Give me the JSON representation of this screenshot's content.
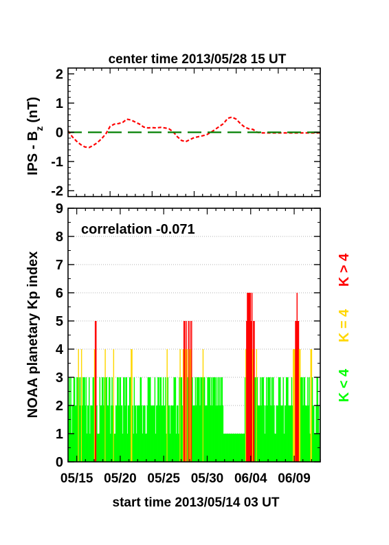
{
  "chart_data": [
    {
      "type": "line",
      "title": "center time 2013/05/28 15 UT",
      "ylabel": "IPS - B",
      "ylabel_subscript": "z",
      "ylabel_unit": "(nT)",
      "ylim": [
        -2.2,
        2.2
      ],
      "y_ticks": [
        "2",
        "1",
        "0",
        "-1",
        "-2"
      ],
      "y_tick_values": [
        2,
        1,
        0,
        -1,
        -2
      ],
      "xlim": [
        0,
        30
      ],
      "series": [
        {
          "color": "#ff0000",
          "style": "dashed",
          "x": [
            0,
            0.5,
            1,
            1.5,
            2,
            2.5,
            3,
            3.5,
            4,
            4.5,
            5,
            5.5,
            6,
            6.5,
            7,
            7.5,
            8,
            8.5,
            9,
            9.5,
            10,
            10.5,
            11,
            11.5,
            12,
            12.5,
            13,
            13.5,
            14,
            14.5,
            15,
            15.5,
            16,
            16.5,
            17,
            17.5,
            18,
            18.5,
            19,
            19.5,
            20,
            20.5,
            21,
            21.5,
            22,
            22.5,
            23,
            23.5,
            24,
            24.5,
            25,
            25.5,
            26,
            26.5,
            27,
            27.5,
            28,
            28.5,
            29,
            29.5,
            30
          ],
          "y": [
            0.05,
            -0.15,
            -0.3,
            -0.42,
            -0.5,
            -0.52,
            -0.45,
            -0.35,
            -0.22,
            -0.05,
            0.2,
            0.28,
            0.3,
            0.34,
            0.45,
            0.42,
            0.35,
            0.28,
            0.18,
            0.15,
            0.16,
            0.15,
            0.17,
            0.15,
            0.12,
            0.02,
            -0.15,
            -0.28,
            -0.32,
            -0.25,
            -0.18,
            -0.15,
            -0.12,
            -0.08,
            0.0,
            0.1,
            0.2,
            0.3,
            0.48,
            0.52,
            0.45,
            0.3,
            0.18,
            0.12,
            0.1,
            0.0,
            -0.02,
            -0.02,
            -0.02,
            -0.02,
            -0.02,
            -0.02,
            -0.02,
            -0.02,
            -0.02,
            -0.02,
            -0.02,
            -0.02,
            -0.02,
            -0.02,
            -0.02
          ]
        },
        {
          "color": "#008000",
          "style": "long-dash",
          "x": [
            0,
            30
          ],
          "y": [
            0,
            0
          ]
        }
      ]
    },
    {
      "type": "bar",
      "title": "start time 2013/05/14 03 UT",
      "ylabel": "NOAA planetary Kp index",
      "annotation": "correlation -0.071",
      "ylim": [
        0,
        9
      ],
      "y_ticks": [
        "9",
        "8",
        "7",
        "6",
        "5",
        "4",
        "3",
        "2",
        "1",
        "0"
      ],
      "y_tick_values": [
        9,
        8,
        7,
        6,
        5,
        4,
        3,
        2,
        1,
        0
      ],
      "grid": true,
      "x_tick_labels": [
        "05/15",
        "05/20",
        "05/25",
        "05/30",
        "06/04",
        "06/09"
      ],
      "x_tick_days": [
        1,
        6,
        11,
        16,
        21,
        26
      ],
      "xlim_days": [
        0,
        29
      ],
      "legend": [
        {
          "label": "K > 4",
          "color": "#ff0000"
        },
        {
          "label": "K = 4",
          "color": "#ffd700"
        },
        {
          "label": "K < 4",
          "color": "#00ff00"
        }
      ],
      "values": [
        2,
        3,
        2,
        3,
        1,
        2,
        2,
        3,
        3,
        2,
        2,
        3,
        3,
        4,
        3,
        2,
        3,
        4,
        2,
        3,
        3,
        3,
        2,
        3,
        1,
        2,
        2,
        3,
        1,
        2,
        2,
        2,
        3,
        3,
        4,
        5,
        5,
        2,
        1,
        1,
        1,
        3,
        2,
        2,
        3,
        3,
        2,
        3,
        4,
        3,
        3,
        2,
        2,
        3,
        3,
        1,
        2,
        3,
        2,
        4,
        1,
        1,
        2,
        2,
        3,
        3,
        2,
        3,
        3,
        2,
        2,
        1,
        3,
        3,
        2,
        3,
        3,
        1,
        2,
        2,
        3,
        3,
        4,
        4,
        2,
        1,
        3,
        2,
        2,
        1,
        2,
        2,
        2,
        2,
        3,
        3,
        2,
        1,
        2,
        2,
        2,
        1,
        1,
        2,
        3,
        3,
        3,
        3,
        2,
        2,
        2,
        2,
        2,
        3,
        1,
        2,
        2,
        3,
        3,
        2,
        3,
        3,
        2,
        2,
        3,
        2,
        2,
        3,
        1,
        4,
        3,
        2,
        2,
        1,
        2,
        2,
        2,
        2,
        3,
        3,
        3,
        1,
        2,
        2,
        1,
        3,
        4,
        3,
        3,
        2,
        4,
        5,
        5,
        4,
        5,
        4,
        3,
        5,
        4,
        5,
        4,
        5,
        3,
        2,
        2,
        2,
        3,
        2,
        3,
        3,
        3,
        3,
        2,
        3,
        3,
        3,
        4,
        3,
        3,
        2,
        2,
        2,
        3,
        3,
        3,
        3,
        2,
        3,
        2,
        3,
        3,
        3,
        3,
        2,
        3,
        2,
        3,
        2,
        3,
        2,
        3,
        3,
        2,
        1,
        1,
        1,
        1,
        1,
        1,
        1,
        1,
        1,
        1,
        1,
        1,
        1,
        1,
        1,
        1,
        1,
        1,
        1,
        1,
        1,
        1,
        1,
        1,
        1,
        1,
        1,
        1,
        3,
        4,
        5,
        6,
        6,
        6,
        6,
        6,
        5,
        6,
        4,
        5,
        5,
        3,
        3,
        4,
        3,
        2,
        2,
        2,
        3,
        2,
        3,
        3,
        3,
        2,
        1,
        2,
        3,
        2,
        3,
        3,
        3,
        2,
        3,
        2,
        3,
        3,
        2,
        1,
        1,
        2,
        2,
        2,
        3,
        3,
        3,
        2,
        2,
        2,
        3,
        1,
        2,
        2,
        3,
        3,
        3,
        2,
        2,
        2,
        2,
        3,
        2,
        4,
        4,
        4,
        5,
        5,
        6,
        5,
        5,
        4,
        4,
        3,
        3,
        3,
        2,
        3,
        3,
        2,
        2,
        2,
        3,
        2,
        3,
        1,
        4,
        4,
        3,
        2,
        2,
        1,
        1,
        2,
        3,
        3,
        2,
        1,
        2
      ]
    }
  ]
}
